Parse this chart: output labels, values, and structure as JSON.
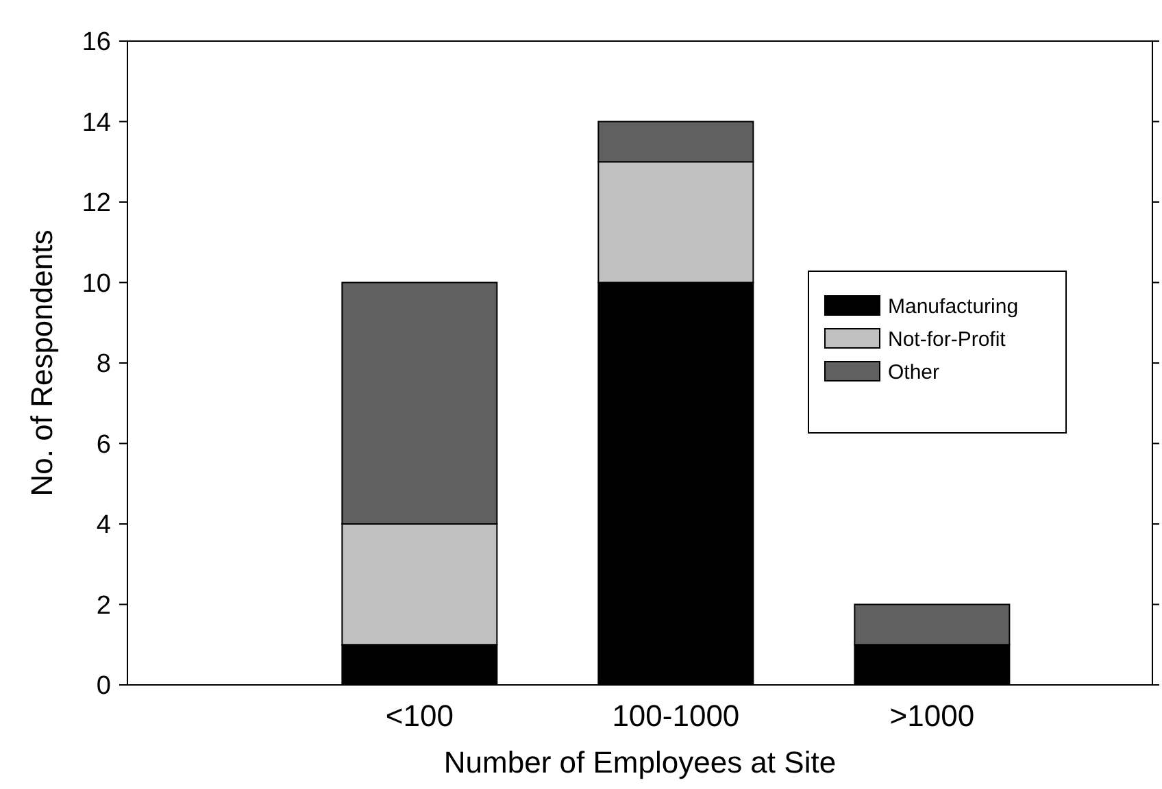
{
  "chart_data": {
    "type": "bar",
    "xlabel": "Number of Employees at Site",
    "ylabel": "No. of Respondents",
    "categories": [
      "<100",
      "100-1000",
      ">1000"
    ],
    "stacked": true,
    "ylim": [
      0,
      16
    ],
    "yticks": [
      0,
      2,
      4,
      6,
      8,
      10,
      12,
      14,
      16
    ],
    "grid": false,
    "legend": "right",
    "series": [
      {
        "name": "Manufacturing",
        "color": "#000000",
        "values": [
          1,
          10,
          1
        ]
      },
      {
        "name": "Not-for-Profit",
        "color": "#c0c0c0",
        "values": [
          3,
          3,
          0
        ]
      },
      {
        "name": "Other",
        "color": "#606060",
        "values": [
          6,
          1,
          1
        ]
      }
    ]
  }
}
